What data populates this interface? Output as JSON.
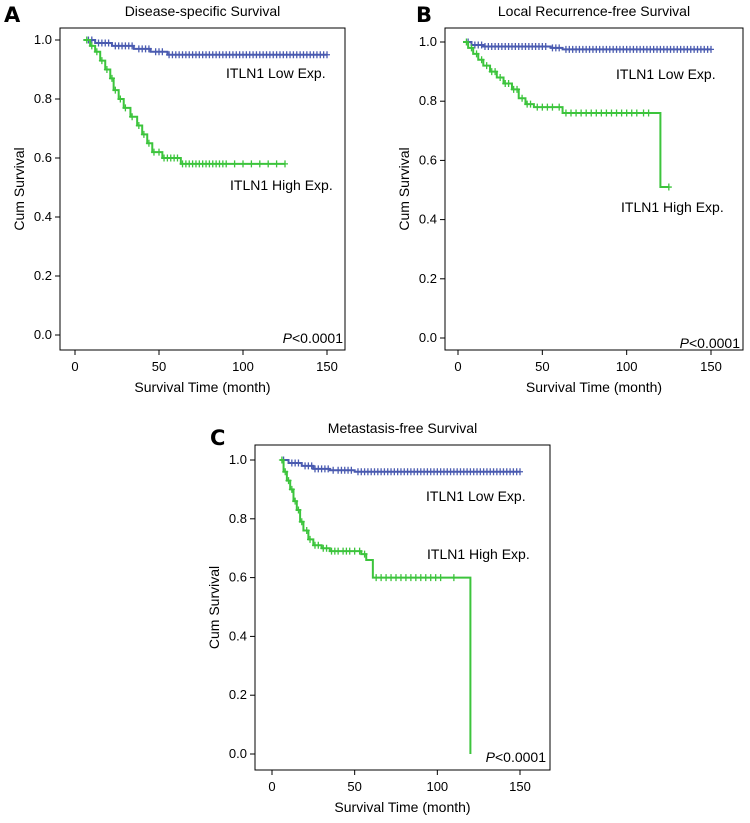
{
  "colors": {
    "low": "#4a5bb0",
    "high": "#3cc43c"
  },
  "chart_data": [
    {
      "letter": "A",
      "type": "line",
      "title": "Disease-specific Survival",
      "xlabel": "Survival Time (month)",
      "ylabel": "Cum Survival",
      "xlim": [
        0,
        150
      ],
      "ylim": [
        0,
        1
      ],
      "xticks": [
        "0",
        "50",
        "100",
        "150"
      ],
      "yticks": [
        "0.0",
        "0.2",
        "0.4",
        "0.6",
        "0.8",
        "1.0"
      ],
      "pvalue_prefix": "P",
      "pvalue_text": "<0.0001",
      "series": [
        {
          "name": "ITLN1 Low Exp.",
          "step": [
            [
              5,
              1.0
            ],
            [
              12,
              0.99
            ],
            [
              22,
              0.98
            ],
            [
              35,
              0.97
            ],
            [
              45,
              0.96
            ],
            [
              55,
              0.95
            ],
            [
              150,
              0.95
            ]
          ],
          "censors": [
            8,
            10,
            14,
            16,
            18,
            20,
            24,
            26,
            28,
            30,
            32,
            34,
            38,
            40,
            42,
            44,
            48,
            50,
            52,
            56,
            58,
            60,
            62,
            64,
            66,
            68,
            70,
            72,
            74,
            76,
            78,
            80,
            82,
            84,
            86,
            88,
            90,
            92,
            94,
            96,
            98,
            100,
            102,
            104,
            106,
            108,
            110,
            112,
            114,
            116,
            118,
            120,
            122,
            124,
            126,
            128,
            130,
            132,
            134,
            136,
            138,
            140,
            142,
            144,
            146,
            148,
            150
          ]
        },
        {
          "name": "ITLN1 High Exp.",
          "step": [
            [
              5,
              1.0
            ],
            [
              9,
              0.98
            ],
            [
              12,
              0.96
            ],
            [
              15,
              0.93
            ],
            [
              18,
              0.9
            ],
            [
              21,
              0.87
            ],
            [
              23,
              0.83
            ],
            [
              26,
              0.8
            ],
            [
              29,
              0.77
            ],
            [
              33,
              0.74
            ],
            [
              37,
              0.71
            ],
            [
              40,
              0.68
            ],
            [
              43,
              0.65
            ],
            [
              46,
              0.62
            ],
            [
              52,
              0.6
            ],
            [
              63,
              0.58
            ],
            [
              125,
              0.58
            ]
          ],
          "censors": [
            7,
            10,
            13,
            16,
            19,
            22,
            24,
            27,
            30,
            34,
            38,
            41,
            44,
            47,
            50,
            53,
            55,
            57,
            59,
            61,
            64,
            66,
            68,
            70,
            72,
            74,
            76,
            78,
            80,
            82,
            84,
            86,
            88,
            90,
            95,
            100,
            105,
            110,
            115,
            120,
            125
          ]
        }
      ]
    },
    {
      "letter": "B",
      "type": "line",
      "title": "Local Recurrence-free Survival",
      "xlabel": "Survival Time (month)",
      "ylabel": "Cum Survival",
      "xlim": [
        0,
        150
      ],
      "ylim": [
        0,
        1
      ],
      "xticks": [
        "0",
        "50",
        "100",
        "150"
      ],
      "yticks": [
        "0.0",
        "0.2",
        "0.4",
        "0.6",
        "0.8",
        "1.0"
      ],
      "pvalue_prefix": "P",
      "pvalue_text": "<0.0001",
      "series": [
        {
          "name": "ITLN1 Low Exp.",
          "step": [
            [
              3,
              1.0
            ],
            [
              8,
              0.99
            ],
            [
              15,
              0.985
            ],
            [
              55,
              0.98
            ],
            [
              62,
              0.975
            ],
            [
              150,
              0.975
            ]
          ],
          "censors": [
            6,
            10,
            12,
            14,
            16,
            18,
            20,
            22,
            24,
            26,
            28,
            30,
            32,
            34,
            36,
            38,
            40,
            42,
            44,
            46,
            48,
            50,
            52,
            56,
            58,
            60,
            64,
            66,
            68,
            70,
            72,
            74,
            76,
            78,
            80,
            82,
            84,
            86,
            88,
            90,
            92,
            94,
            96,
            98,
            100,
            102,
            104,
            106,
            108,
            110,
            112,
            114,
            116,
            118,
            120,
            122,
            124,
            126,
            128,
            130,
            132,
            134,
            136,
            138,
            140,
            142,
            144,
            146,
            148,
            150
          ]
        },
        {
          "name": "ITLN1 High Exp.",
          "step": [
            [
              3,
              1.0
            ],
            [
              6,
              0.98
            ],
            [
              9,
              0.96
            ],
            [
              12,
              0.94
            ],
            [
              15,
              0.92
            ],
            [
              19,
              0.9
            ],
            [
              23,
              0.88
            ],
            [
              27,
              0.86
            ],
            [
              32,
              0.84
            ],
            [
              36,
              0.81
            ],
            [
              40,
              0.79
            ],
            [
              45,
              0.78
            ],
            [
              62,
              0.76
            ],
            [
              120,
              0.76
            ],
            [
              120,
              0.51
            ],
            [
              125,
              0.51
            ]
          ],
          "censors": [
            5,
            8,
            11,
            14,
            17,
            20,
            22,
            25,
            28,
            30,
            33,
            35,
            38,
            41,
            43,
            47,
            50,
            53,
            56,
            60,
            64,
            67,
            70,
            73,
            76,
            79,
            82,
            85,
            88,
            91,
            94,
            97,
            100,
            103,
            106,
            110,
            113,
            125
          ]
        }
      ]
    },
    {
      "letter": "C",
      "type": "line",
      "title": "Metastasis-free Survival",
      "xlabel": "Survival Time (month)",
      "ylabel": "Cum Survival",
      "xlim": [
        0,
        150
      ],
      "ylim": [
        0,
        1
      ],
      "xticks": [
        "0",
        "50",
        "100",
        "150"
      ],
      "yticks": [
        "0.0",
        "0.2",
        "0.4",
        "0.6",
        "0.8",
        "1.0"
      ],
      "pvalue_prefix": "P",
      "pvalue_text": "<0.0001",
      "series": [
        {
          "name": "ITLN1 Low Exp.",
          "step": [
            [
              5,
              1.0
            ],
            [
              10,
              0.99
            ],
            [
              18,
              0.98
            ],
            [
              25,
              0.97
            ],
            [
              35,
              0.965
            ],
            [
              50,
              0.96
            ],
            [
              150,
              0.96
            ]
          ],
          "censors": [
            7,
            12,
            14,
            16,
            20,
            22,
            24,
            26,
            28,
            30,
            32,
            34,
            37,
            40,
            42,
            44,
            46,
            48,
            52,
            54,
            56,
            58,
            60,
            62,
            64,
            66,
            68,
            70,
            72,
            74,
            76,
            78,
            80,
            82,
            84,
            86,
            88,
            90,
            92,
            94,
            96,
            98,
            100,
            102,
            104,
            106,
            108,
            110,
            112,
            114,
            116,
            118,
            120,
            122,
            124,
            126,
            128,
            130,
            132,
            134,
            136,
            138,
            140,
            142,
            144,
            146,
            148,
            150
          ]
        },
        {
          "name": "ITLN1 High Exp.",
          "step": [
            [
              5,
              1.0
            ],
            [
              7,
              0.96
            ],
            [
              9,
              0.93
            ],
            [
              11,
              0.9
            ],
            [
              13,
              0.86
            ],
            [
              15,
              0.83
            ],
            [
              17,
              0.79
            ],
            [
              19,
              0.76
            ],
            [
              22,
              0.73
            ],
            [
              25,
              0.71
            ],
            [
              30,
              0.7
            ],
            [
              35,
              0.69
            ],
            [
              54,
              0.68
            ],
            [
              57,
              0.66
            ],
            [
              61,
              0.6
            ],
            [
              120,
              0.6
            ],
            [
              120,
              0.0
            ]
          ],
          "censors": [
            6,
            8,
            10,
            12,
            14,
            16,
            18,
            21,
            23,
            26,
            28,
            31,
            33,
            36,
            38,
            40,
            43,
            45,
            47,
            50,
            53,
            56,
            63,
            66,
            69,
            72,
            75,
            78,
            81,
            84,
            87,
            90,
            93,
            96,
            99,
            102,
            110
          ]
        }
      ]
    }
  ]
}
